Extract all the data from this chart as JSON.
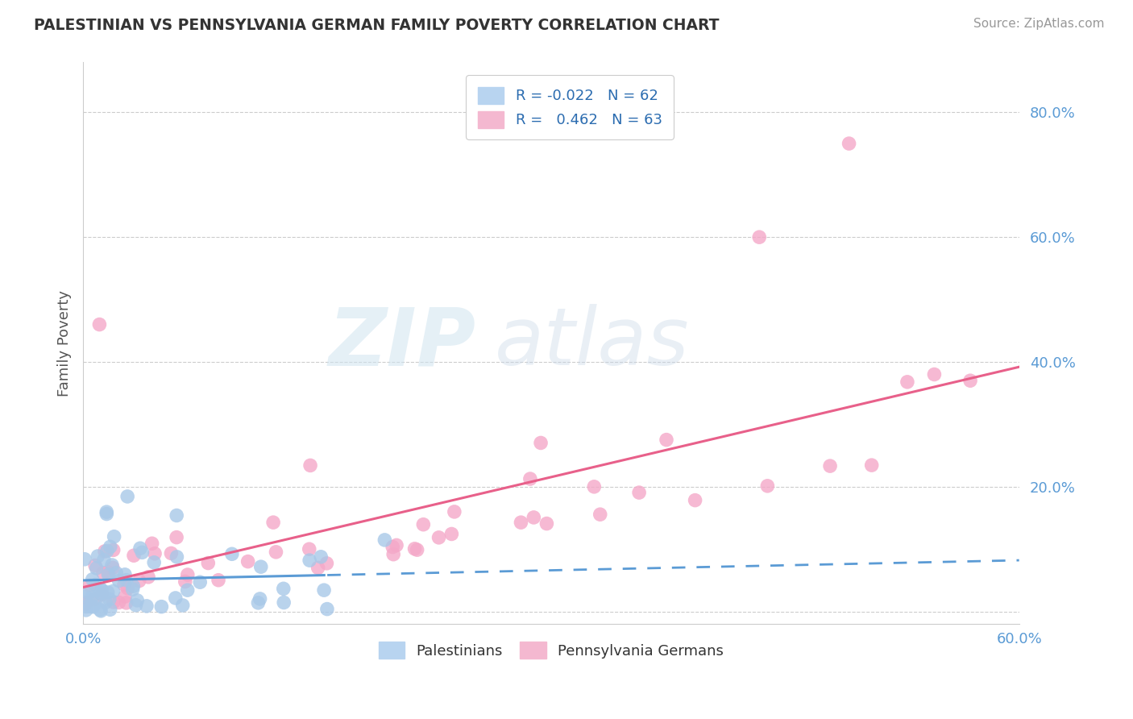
{
  "title": "PALESTINIAN VS PENNSYLVANIA GERMAN FAMILY POVERTY CORRELATION CHART",
  "source": "Source: ZipAtlas.com",
  "ylabel": "Family Poverty",
  "y_ticks": [
    0.0,
    0.2,
    0.4,
    0.6,
    0.8
  ],
  "y_tick_labels": [
    "",
    "20.0%",
    "40.0%",
    "60.0%",
    "80.0%"
  ],
  "x_range": [
    0.0,
    0.6
  ],
  "y_range": [
    -0.02,
    0.88
  ],
  "legend_R1": "R = -0.022",
  "legend_N1": "N = 62",
  "legend_R2": "R =  0.462",
  "legend_N2": "N = 63",
  "blue_color": "#A8C8E8",
  "pink_color": "#F4A8C8",
  "blue_line_color": "#5B9BD5",
  "pink_line_color": "#E8608A",
  "watermark_zip": "ZIP",
  "watermark_atlas": "atlas"
}
